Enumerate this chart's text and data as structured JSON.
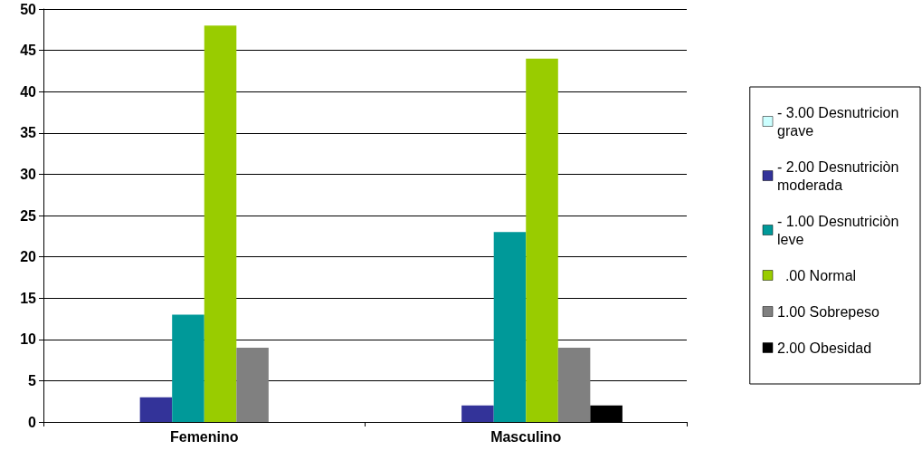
{
  "chart_data": {
    "type": "bar",
    "categories": [
      "Femenino",
      "Masculino"
    ],
    "series": [
      {
        "name": "- 3.00 Desnutricion grave",
        "color": "#ccffff",
        "values": [
          0,
          0
        ]
      },
      {
        "name": "- 2.00 Desnutriciòn moderada",
        "color": "#333399",
        "values": [
          3,
          2
        ]
      },
      {
        "name": "- 1.00 Desnutriciòn leve",
        "color": "#009999",
        "values": [
          13,
          23
        ]
      },
      {
        "name": "  .00 Normal",
        "color": "#99cc00",
        "values": [
          48,
          44
        ]
      },
      {
        "name": "1.00 Sobrepeso",
        "color": "#808080",
        "values": [
          9,
          9
        ]
      },
      {
        "name": "2.00 Obesidad",
        "color": "#000000",
        "values": [
          0,
          2
        ]
      }
    ],
    "ylim": [
      0,
      50
    ],
    "yticks": [
      0,
      5,
      10,
      15,
      20,
      25,
      30,
      35,
      40,
      45,
      50
    ],
    "grid": "y",
    "legend": "right"
  }
}
